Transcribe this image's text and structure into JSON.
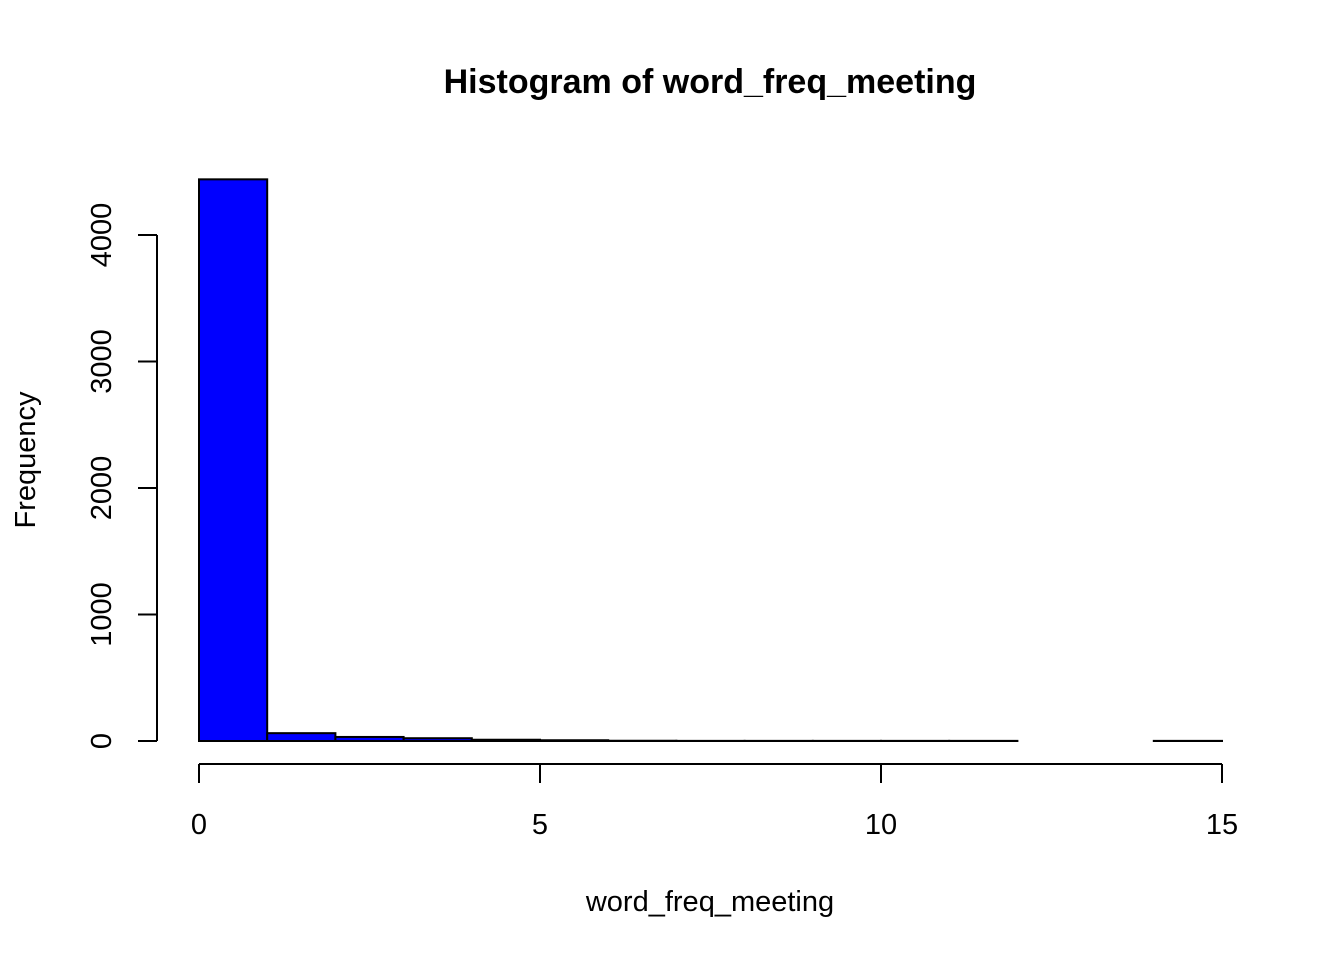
{
  "chart_data": {
    "type": "bar",
    "subtype": "histogram",
    "title": "Histogram of word_freq_meeting",
    "xlabel": "word_freq_meeting",
    "ylabel": "Frequency",
    "bins": [
      {
        "x0": 0,
        "x1": 1,
        "count": 4440
      },
      {
        "x0": 1,
        "x1": 2,
        "count": 62
      },
      {
        "x0": 2,
        "x1": 3,
        "count": 32
      },
      {
        "x0": 3,
        "x1": 4,
        "count": 22
      },
      {
        "x0": 4,
        "x1": 5,
        "count": 10
      },
      {
        "x0": 5,
        "x1": 6,
        "count": 6
      },
      {
        "x0": 6,
        "x1": 7,
        "count": 2
      },
      {
        "x0": 7,
        "x1": 8,
        "count": 1
      },
      {
        "x0": 8,
        "x1": 9,
        "count": 1
      },
      {
        "x0": 9,
        "x1": 10,
        "count": 1
      },
      {
        "x0": 10,
        "x1": 11,
        "count": 1
      },
      {
        "x0": 11,
        "x1": 12,
        "count": 1
      },
      {
        "x0": 12,
        "x1": 13,
        "count": 0
      },
      {
        "x0": 13,
        "x1": 14,
        "count": 0
      },
      {
        "x0": 14,
        "x1": 15,
        "count": 1
      }
    ],
    "xlim": [
      0,
      15
    ],
    "ylim": [
      0,
      4440
    ],
    "xticks": [
      0,
      5,
      10,
      15
    ],
    "yticks": [
      0,
      1000,
      2000,
      3000,
      4000
    ],
    "bar_color": "#0000ff",
    "grid": false,
    "legend": "none"
  }
}
